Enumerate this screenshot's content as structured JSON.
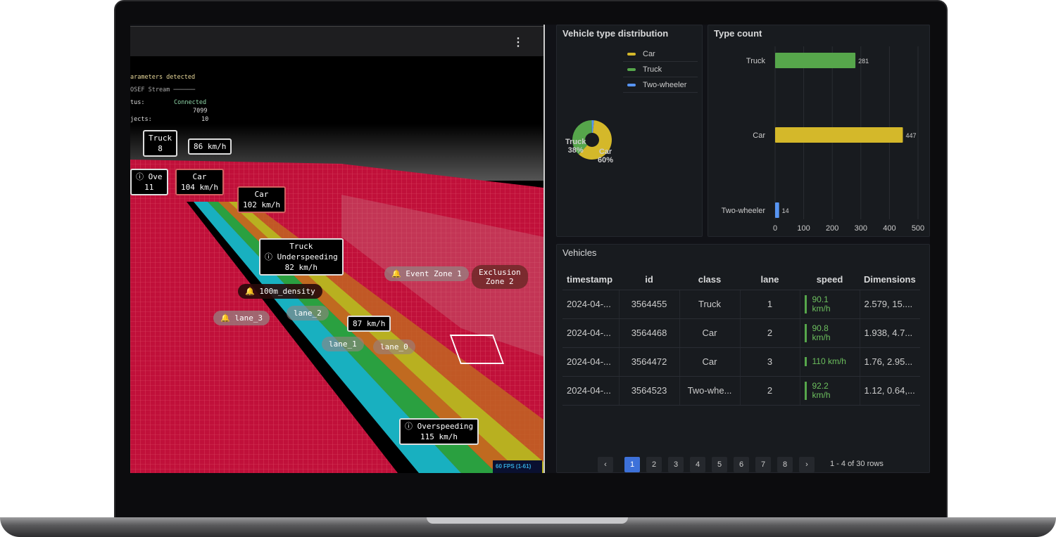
{
  "viewer": {
    "menu_icon": "kebab-icon",
    "terminal": [
      "arameters detected",
      "OSEF Stream ──────",
      "tus:",
      "Connected",
      "7099",
      "jects:",
      "10"
    ],
    "labels": [
      {
        "t": "Truck\n8"
      },
      {
        "t": "86 km/h"
      },
      {
        "t": "ⓘ Ove\n11"
      },
      {
        "t": "Car\n104 km/h"
      },
      {
        "t": "Car\n102 km/h"
      },
      {
        "t": "Truck\nⓘ Underspeeding\n82 km/h"
      },
      {
        "t": "87 km/h"
      },
      {
        "t": "ⓘ Overspeeding\n115 km/h"
      }
    ],
    "zones": {
      "event": "Event Zone 1",
      "exclusion": "Exclusion\nZone 2",
      "density": "100m_density",
      "lane3": "lane_3",
      "lane2": "lane_2",
      "lane1": "lane_1",
      "lane0": "lane_0"
    },
    "fps": "60 FPS (1-61)"
  },
  "distribution": {
    "title": "Vehicle type distribution",
    "legend": [
      {
        "label": "Car",
        "color": "#d4b82a"
      },
      {
        "label": "Truck",
        "color": "#56a64b"
      },
      {
        "label": "Two-wheeler",
        "color": "#5794f2"
      }
    ],
    "slices": [
      {
        "label": "Car",
        "pct": "60%",
        "value": 447
      },
      {
        "label": "Truck",
        "pct": "38%",
        "value": 281
      },
      {
        "label": "Two-wheeler",
        "value": 14
      }
    ]
  },
  "chart_data": {
    "type": "bar",
    "title": "Type count",
    "categories": [
      "Truck",
      "Car",
      "Two-wheeler"
    ],
    "values": [
      281,
      447,
      14
    ],
    "colors": [
      "#56a64b",
      "#d4b82a",
      "#5794f2"
    ],
    "xlim": [
      0,
      500
    ],
    "xticks": [
      "0",
      "100",
      "200",
      "300",
      "400",
      "500"
    ],
    "orientation": "horizontal",
    "grid": true
  },
  "vehicles": {
    "title": "Vehicles",
    "columns": [
      "timestamp",
      "id",
      "class",
      "lane",
      "speed",
      "Dimensions"
    ],
    "rows": [
      [
        "2024-04-...",
        "3564455",
        "Truck",
        "1",
        "90.1\nkm/h",
        "2.579, 15...."
      ],
      [
        "2024-04-...",
        "3564468",
        "Car",
        "2",
        "90.8\nkm/h",
        "1.938, 4.7..."
      ],
      [
        "2024-04-...",
        "3564472",
        "Car",
        "3",
        "110 km/h",
        "1.76, 2.95..."
      ],
      [
        "2024-04-...",
        "3564523",
        "Two-whe...",
        "2",
        "92.2\nkm/h",
        "1.12, 0.64,..."
      ]
    ],
    "pages": [
      "1",
      "2",
      "3",
      "4",
      "5",
      "6",
      "7",
      "8"
    ],
    "current_page": "1",
    "prev": "‹",
    "next": "›",
    "summary": "1 - 4 of 30 rows"
  }
}
